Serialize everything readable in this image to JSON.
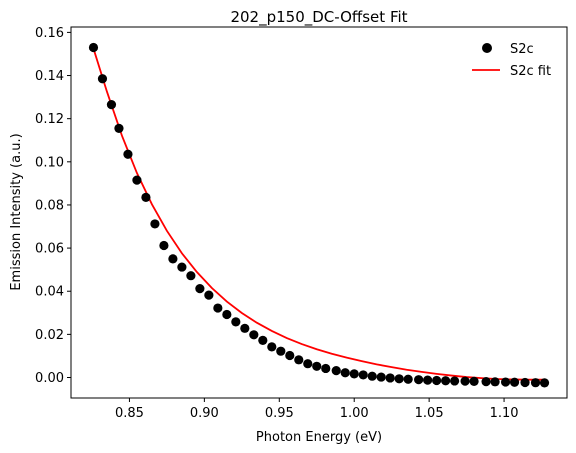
{
  "chart_data": {
    "type": "scatter",
    "title": "202_p150_DC-Offset Fit",
    "xlabel": "Photon Energy (eV)",
    "ylabel": "Emission Intensity (a.u.)",
    "xlim": [
      0.811,
      1.142
    ],
    "ylim": [
      -0.0095,
      0.1625
    ],
    "xticks": [
      "0.85",
      "0.90",
      "0.95",
      "1.00",
      "1.05",
      "1.10"
    ],
    "yticks": [
      "0.00",
      "0.02",
      "0.04",
      "0.06",
      "0.08",
      "0.10",
      "0.12",
      "0.14",
      "0.16"
    ],
    "grid": false,
    "legend_position": "top-right",
    "series": [
      {
        "name": "S2c",
        "kind": "scatter",
        "color": "#000000",
        "x": [
          0.826,
          0.832,
          0.838,
          0.843,
          0.849,
          0.855,
          0.861,
          0.867,
          0.873,
          0.879,
          0.885,
          0.891,
          0.897,
          0.903,
          0.909,
          0.915,
          0.921,
          0.927,
          0.933,
          0.939,
          0.945,
          0.951,
          0.957,
          0.963,
          0.969,
          0.975,
          0.981,
          0.988,
          0.994,
          1.0,
          1.006,
          1.012,
          1.018,
          1.024,
          1.03,
          1.036,
          1.043,
          1.049,
          1.055,
          1.061,
          1.067,
          1.074,
          1.08,
          1.088,
          1.094,
          1.101,
          1.107,
          1.114,
          1.121,
          1.127
        ],
        "y": [
          0.153,
          0.1385,
          0.1265,
          0.1155,
          0.1035,
          0.0915,
          0.0835,
          0.0712,
          0.0612,
          0.055,
          0.0512,
          0.0472,
          0.0412,
          0.0382,
          0.0322,
          0.0292,
          0.0258,
          0.0228,
          0.0198,
          0.0172,
          0.0142,
          0.0122,
          0.0102,
          0.0082,
          0.0064,
          0.0052,
          0.0042,
          0.0032,
          0.0022,
          0.0017,
          0.0012,
          0.0006,
          0.0002,
          -0.0002,
          -0.0006,
          -0.0008,
          -0.001,
          -0.0012,
          -0.0014,
          -0.0015,
          -0.0016,
          -0.0017,
          -0.0018,
          -0.0019,
          -0.002,
          -0.0021,
          -0.0022,
          -0.0023,
          -0.0024,
          -0.0025
        ]
      },
      {
        "name": "S2c fit",
        "kind": "line",
        "color": "#ff0000",
        "x": [
          0.826,
          0.835,
          0.845,
          0.855,
          0.865,
          0.875,
          0.885,
          0.895,
          0.905,
          0.915,
          0.925,
          0.935,
          0.945,
          0.955,
          0.965,
          0.975,
          0.985,
          0.995,
          1.005,
          1.015,
          1.025,
          1.035,
          1.045,
          1.055,
          1.065,
          1.075,
          1.085,
          1.095,
          1.105,
          1.115,
          1.127
        ],
        "y": [
          0.1525,
          0.1325,
          0.1121,
          0.0948,
          0.0803,
          0.068,
          0.0576,
          0.0489,
          0.0415,
          0.0352,
          0.0299,
          0.0254,
          0.0216,
          0.0183,
          0.0155,
          0.0131,
          0.011,
          0.0092,
          0.0076,
          0.0061,
          0.0048,
          0.0036,
          0.0026,
          0.0017,
          0.0009,
          0.0002,
          -0.0003,
          -0.0007,
          -0.0009,
          -0.001,
          -0.001
        ]
      }
    ]
  }
}
